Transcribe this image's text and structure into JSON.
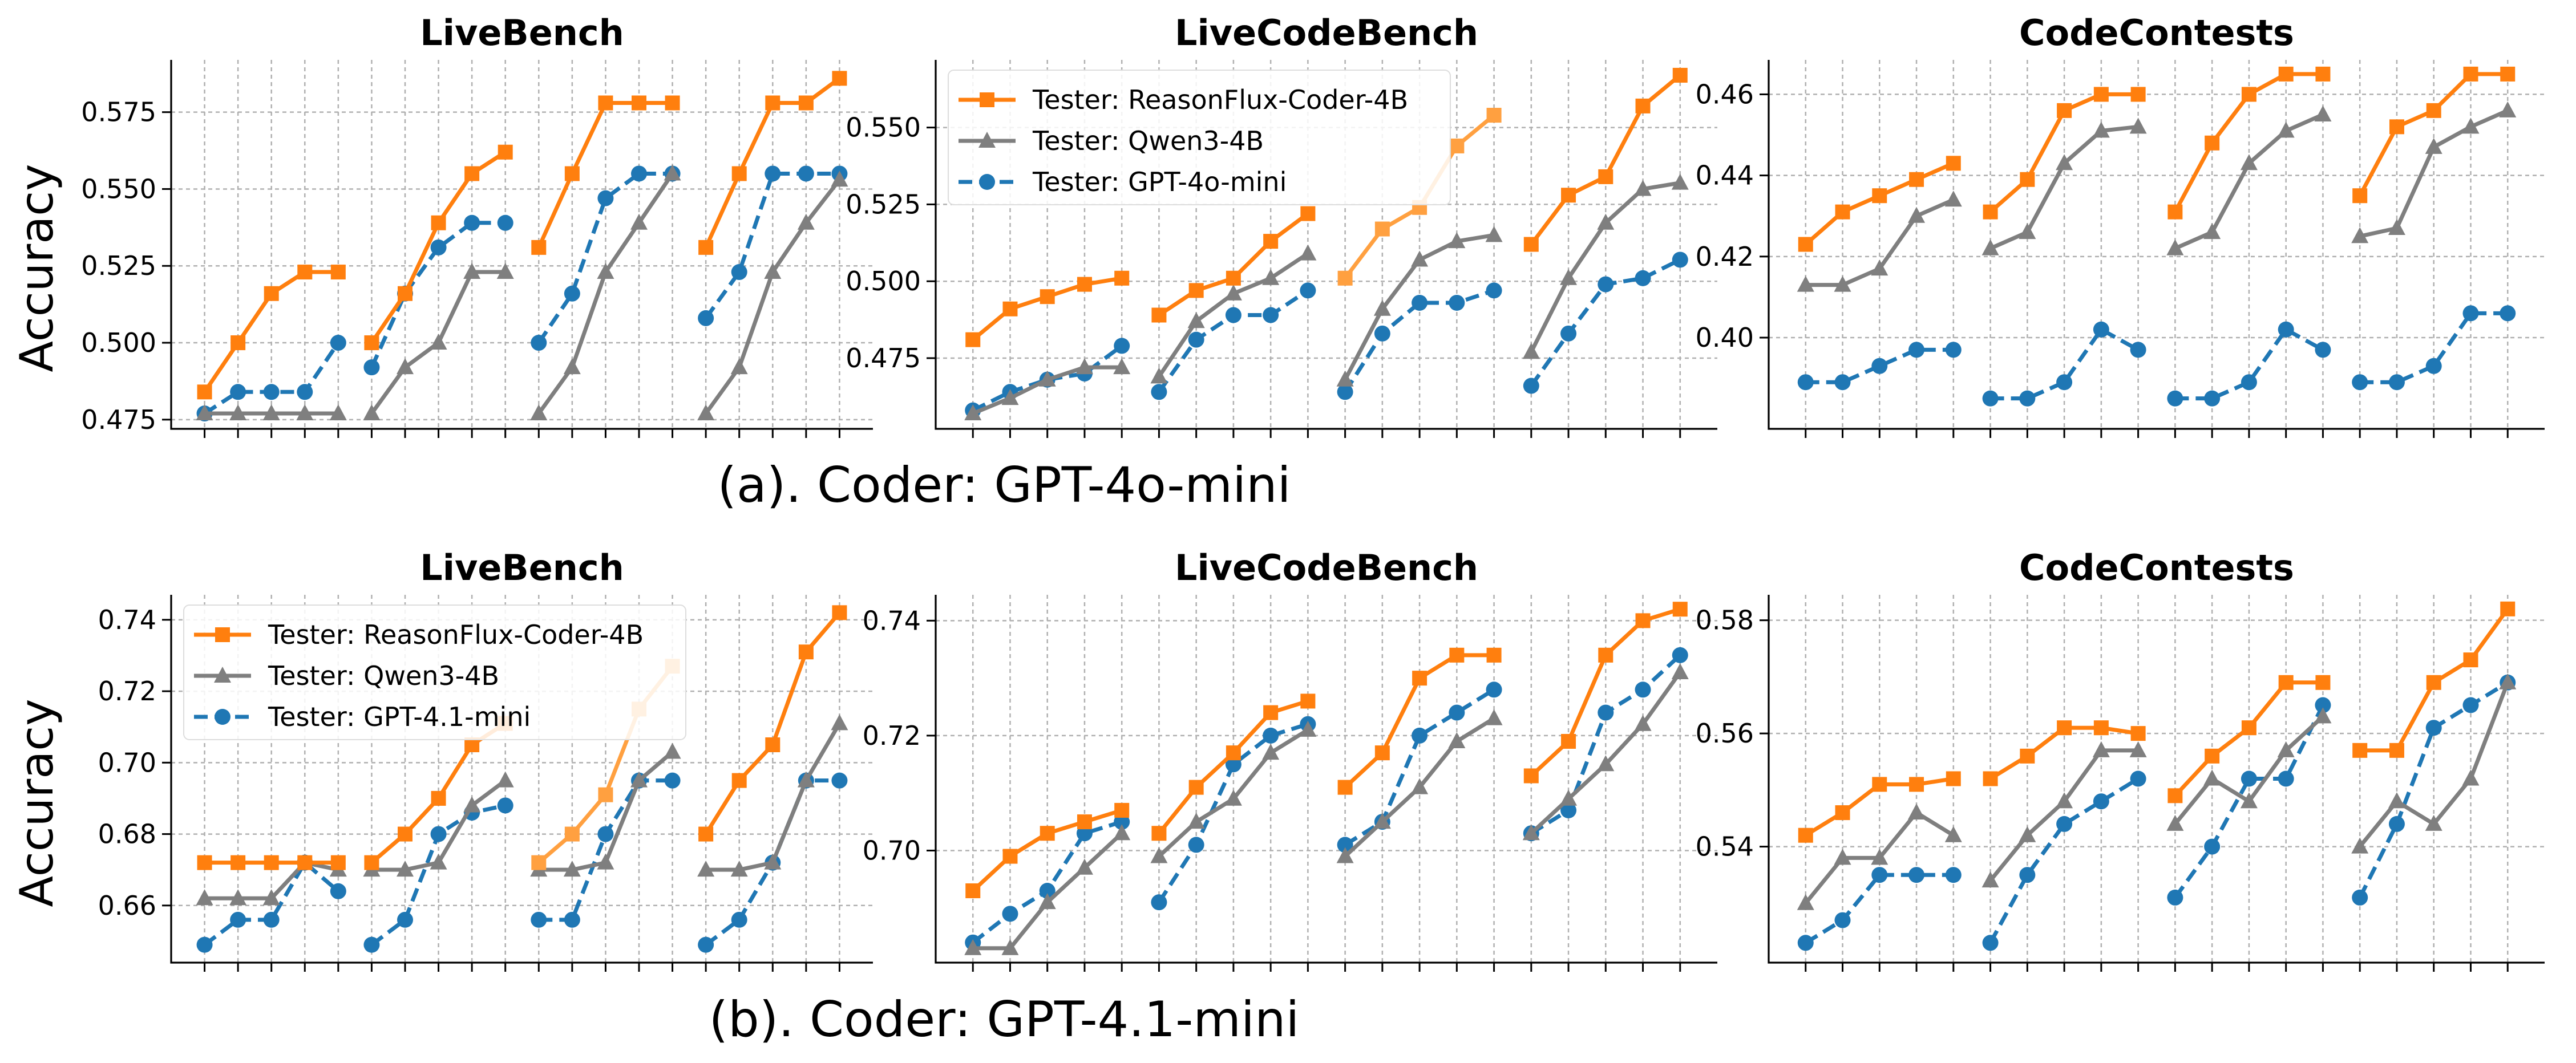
{
  "colors": {
    "reasonflux": "#ff7f0e",
    "reasonflux_light": "#ffa040",
    "qwen": "#7f7f7f",
    "gpt": "#1f77b4"
  },
  "captions": [
    "(a). Coder: GPT-4o-mini",
    "(b). Coder: GPT-4.1-mini"
  ],
  "ylabel": "Accuracy",
  "chart_data": [
    {
      "type": "line",
      "title": "LiveBench",
      "ylabel": "Accuracy",
      "row": 0,
      "col": 0,
      "ylim": [
        0.472,
        0.592
      ],
      "yticks": [
        0.475,
        0.5,
        0.525,
        0.55,
        0.575
      ],
      "decimals": 3,
      "grid": true,
      "series": [
        {
          "name": "Tester: ReasonFlux-Coder-4B",
          "segments": [
            [
              0.484,
              0.5,
              0.516,
              0.523,
              0.523
            ],
            [
              0.5,
              0.516,
              0.539,
              0.555,
              0.562
            ],
            [
              0.531,
              0.555,
              0.578,
              0.578,
              0.578
            ],
            [
              0.531,
              0.555,
              0.578,
              0.578,
              0.586
            ]
          ]
        },
        {
          "name": "Tester: Qwen3-4B",
          "segments": [
            [
              0.477,
              0.477,
              0.477,
              0.477,
              0.477
            ],
            [
              0.477,
              0.492,
              0.5,
              0.523,
              0.523
            ],
            [
              0.477,
              0.492,
              0.523,
              0.539,
              0.555
            ],
            [
              0.477,
              0.492,
              0.523,
              0.539,
              0.553
            ]
          ]
        },
        {
          "name": "Tester: GPT-4o-mini",
          "segments": [
            [
              0.477,
              0.484,
              0.484,
              0.484,
              0.5
            ],
            [
              0.492,
              0.516,
              0.531,
              0.539,
              0.539
            ],
            [
              0.5,
              0.516,
              0.547,
              0.555,
              0.555
            ],
            [
              0.508,
              0.523,
              0.555,
              0.555,
              0.555
            ]
          ]
        }
      ]
    },
    {
      "type": "line",
      "title": "LiveCodeBench",
      "row": 0,
      "col": 1,
      "ylim": [
        0.452,
        0.572
      ],
      "yticks": [
        0.475,
        0.5,
        0.525,
        0.55
      ],
      "decimals": 3,
      "grid": true,
      "legend": {
        "position": "top-left",
        "entries": [
          "Tester: ReasonFlux-Coder-4B",
          "Tester: Qwen3-4B",
          "Tester: GPT-4o-mini"
        ]
      },
      "series": [
        {
          "name": "Tester: ReasonFlux-Coder-4B",
          "segments": [
            [
              0.481,
              0.491,
              0.495,
              0.499,
              0.501
            ],
            [
              0.489,
              0.497,
              0.501,
              0.513,
              0.522
            ],
            [
              0.501,
              0.517,
              0.524,
              0.544,
              0.554
            ],
            [
              0.512,
              0.528,
              0.534,
              0.557,
              0.567
            ]
          ]
        },
        {
          "name": "Tester: Qwen3-4B",
          "segments": [
            [
              0.457,
              0.462,
              0.468,
              0.472,
              0.472
            ],
            [
              0.469,
              0.487,
              0.496,
              0.501,
              0.509
            ],
            [
              0.468,
              0.491,
              0.507,
              0.513,
              0.515
            ],
            [
              0.477,
              0.501,
              0.519,
              0.53,
              0.532
            ]
          ]
        },
        {
          "name": "Tester: GPT-4o-mini",
          "segments": [
            [
              0.458,
              0.464,
              0.468,
              0.47,
              0.479
            ],
            [
              0.464,
              0.481,
              0.489,
              0.489,
              0.497
            ],
            [
              0.464,
              0.483,
              0.493,
              0.493,
              0.497
            ],
            [
              0.466,
              0.483,
              0.499,
              0.501,
              0.507
            ]
          ]
        }
      ]
    },
    {
      "type": "line",
      "title": "CodeContests",
      "row": 0,
      "col": 2,
      "ylim": [
        0.3775,
        0.4685
      ],
      "yticks": [
        0.4,
        0.42,
        0.44,
        0.46
      ],
      "decimals": 2,
      "grid": true,
      "series": [
        {
          "name": "Tester: ReasonFlux-Coder-4B",
          "segments": [
            [
              0.423,
              0.431,
              0.435,
              0.439,
              0.443
            ],
            [
              0.431,
              0.439,
              0.456,
              0.46,
              0.46
            ],
            [
              0.431,
              0.448,
              0.46,
              0.465,
              0.465
            ],
            [
              0.435,
              0.452,
              0.456,
              0.465,
              0.465
            ]
          ]
        },
        {
          "name": "Tester: Qwen3-4B",
          "segments": [
            [
              0.413,
              0.413,
              0.417,
              0.43,
              0.434
            ],
            [
              0.422,
              0.426,
              0.443,
              0.451,
              0.452
            ],
            [
              0.422,
              0.426,
              0.443,
              0.451,
              0.455
            ],
            [
              0.425,
              0.427,
              0.447,
              0.452,
              0.456
            ]
          ]
        },
        {
          "name": "Tester: GPT-4o-mini",
          "segments": [
            [
              0.389,
              0.389,
              0.393,
              0.397,
              0.397
            ],
            [
              0.385,
              0.385,
              0.389,
              0.402,
              0.397
            ],
            [
              0.385,
              0.385,
              0.389,
              0.402,
              0.397
            ],
            [
              0.389,
              0.389,
              0.393,
              0.406,
              0.406
            ]
          ]
        }
      ]
    },
    {
      "type": "line",
      "title": "LiveBench",
      "ylabel": "Accuracy",
      "row": 1,
      "col": 0,
      "ylim": [
        0.644,
        0.747
      ],
      "yticks": [
        0.66,
        0.68,
        0.7,
        0.72,
        0.74
      ],
      "decimals": 2,
      "grid": true,
      "legend": {
        "position": "top-left",
        "entries": [
          "Tester: ReasonFlux-Coder-4B",
          "Tester: Qwen3-4B",
          "Tester: GPT-4.1-mini"
        ]
      },
      "series": [
        {
          "name": "Tester: ReasonFlux-Coder-4B",
          "segments": [
            [
              0.672,
              0.672,
              0.672,
              0.672,
              0.672
            ],
            [
              0.672,
              0.68,
              0.69,
              0.705,
              0.711
            ],
            [
              0.672,
              0.68,
              0.691,
              0.715,
              0.727
            ],
            [
              0.68,
              0.695,
              0.705,
              0.731,
              0.742
            ]
          ]
        },
        {
          "name": "Tester: Qwen3-4B",
          "segments": [
            [
              0.662,
              0.662,
              0.662,
              0.672,
              0.67
            ],
            [
              0.67,
              0.67,
              0.672,
              0.688,
              0.695
            ],
            [
              0.67,
              0.67,
              0.672,
              0.695,
              0.703
            ],
            [
              0.67,
              0.67,
              0.672,
              0.695,
              0.711
            ]
          ]
        },
        {
          "name": "Tester: GPT-4.1-mini",
          "segments": [
            [
              0.649,
              0.656,
              0.656,
              0.672,
              0.664
            ],
            [
              0.649,
              0.656,
              0.68,
              0.686,
              0.688
            ],
            [
              0.656,
              0.656,
              0.68,
              0.695,
              0.695
            ],
            [
              0.649,
              0.656,
              0.672,
              0.695,
              0.695
            ]
          ]
        }
      ]
    },
    {
      "type": "line",
      "title": "LiveCodeBench",
      "row": 1,
      "col": 1,
      "ylim": [
        0.6805,
        0.7445
      ],
      "yticks": [
        0.7,
        0.72,
        0.74
      ],
      "decimals": 2,
      "grid": true,
      "series": [
        {
          "name": "Tester: ReasonFlux-Coder-4B",
          "segments": [
            [
              0.693,
              0.699,
              0.703,
              0.705,
              0.707
            ],
            [
              0.703,
              0.711,
              0.717,
              0.724,
              0.726
            ],
            [
              0.711,
              0.717,
              0.73,
              0.734,
              0.734
            ],
            [
              0.713,
              0.719,
              0.734,
              0.74,
              0.742
            ]
          ]
        },
        {
          "name": "Tester: Qwen3-4B",
          "segments": [
            [
              0.683,
              0.683,
              0.691,
              0.697,
              0.703
            ],
            [
              0.699,
              0.705,
              0.709,
              0.717,
              0.721
            ],
            [
              0.699,
              0.705,
              0.711,
              0.719,
              0.723
            ],
            [
              0.703,
              0.709,
              0.715,
              0.722,
              0.731
            ]
          ]
        },
        {
          "name": "Tester: GPT-4.1-mini",
          "segments": [
            [
              0.684,
              0.689,
              0.693,
              0.703,
              0.705
            ],
            [
              0.691,
              0.701,
              0.715,
              0.72,
              0.722
            ],
            [
              0.701,
              0.705,
              0.72,
              0.724,
              0.728
            ],
            [
              0.703,
              0.707,
              0.724,
              0.728,
              0.734
            ]
          ]
        }
      ]
    },
    {
      "type": "line",
      "title": "CodeContests",
      "row": 1,
      "col": 2,
      "ylim": [
        0.5195,
        0.5845
      ],
      "yticks": [
        0.54,
        0.56,
        0.58
      ],
      "decimals": 2,
      "grid": true,
      "series": [
        {
          "name": "Tester: ReasonFlux-Coder-4B",
          "segments": [
            [
              0.542,
              0.546,
              0.551,
              0.551,
              0.552
            ],
            [
              0.552,
              0.556,
              0.561,
              0.561,
              0.56
            ],
            [
              0.549,
              0.556,
              0.561,
              0.569,
              0.569
            ],
            [
              0.557,
              0.557,
              0.569,
              0.573,
              0.582
            ]
          ]
        },
        {
          "name": "Tester: Qwen3-4B",
          "segments": [
            [
              0.53,
              0.538,
              0.538,
              0.546,
              0.542
            ],
            [
              0.534,
              0.542,
              0.548,
              0.557,
              0.557
            ],
            [
              0.544,
              0.552,
              0.548,
              0.557,
              0.563
            ],
            [
              0.54,
              0.548,
              0.544,
              0.552,
              0.569
            ]
          ]
        },
        {
          "name": "Tester: GPT-4.1-mini",
          "segments": [
            [
              0.523,
              0.527,
              0.535,
              0.535,
              0.535
            ],
            [
              0.523,
              0.535,
              0.544,
              0.548,
              0.552
            ],
            [
              0.531,
              0.54,
              0.552,
              0.552,
              0.565
            ],
            [
              0.531,
              0.544,
              0.561,
              0.565,
              0.569
            ]
          ]
        }
      ]
    }
  ]
}
